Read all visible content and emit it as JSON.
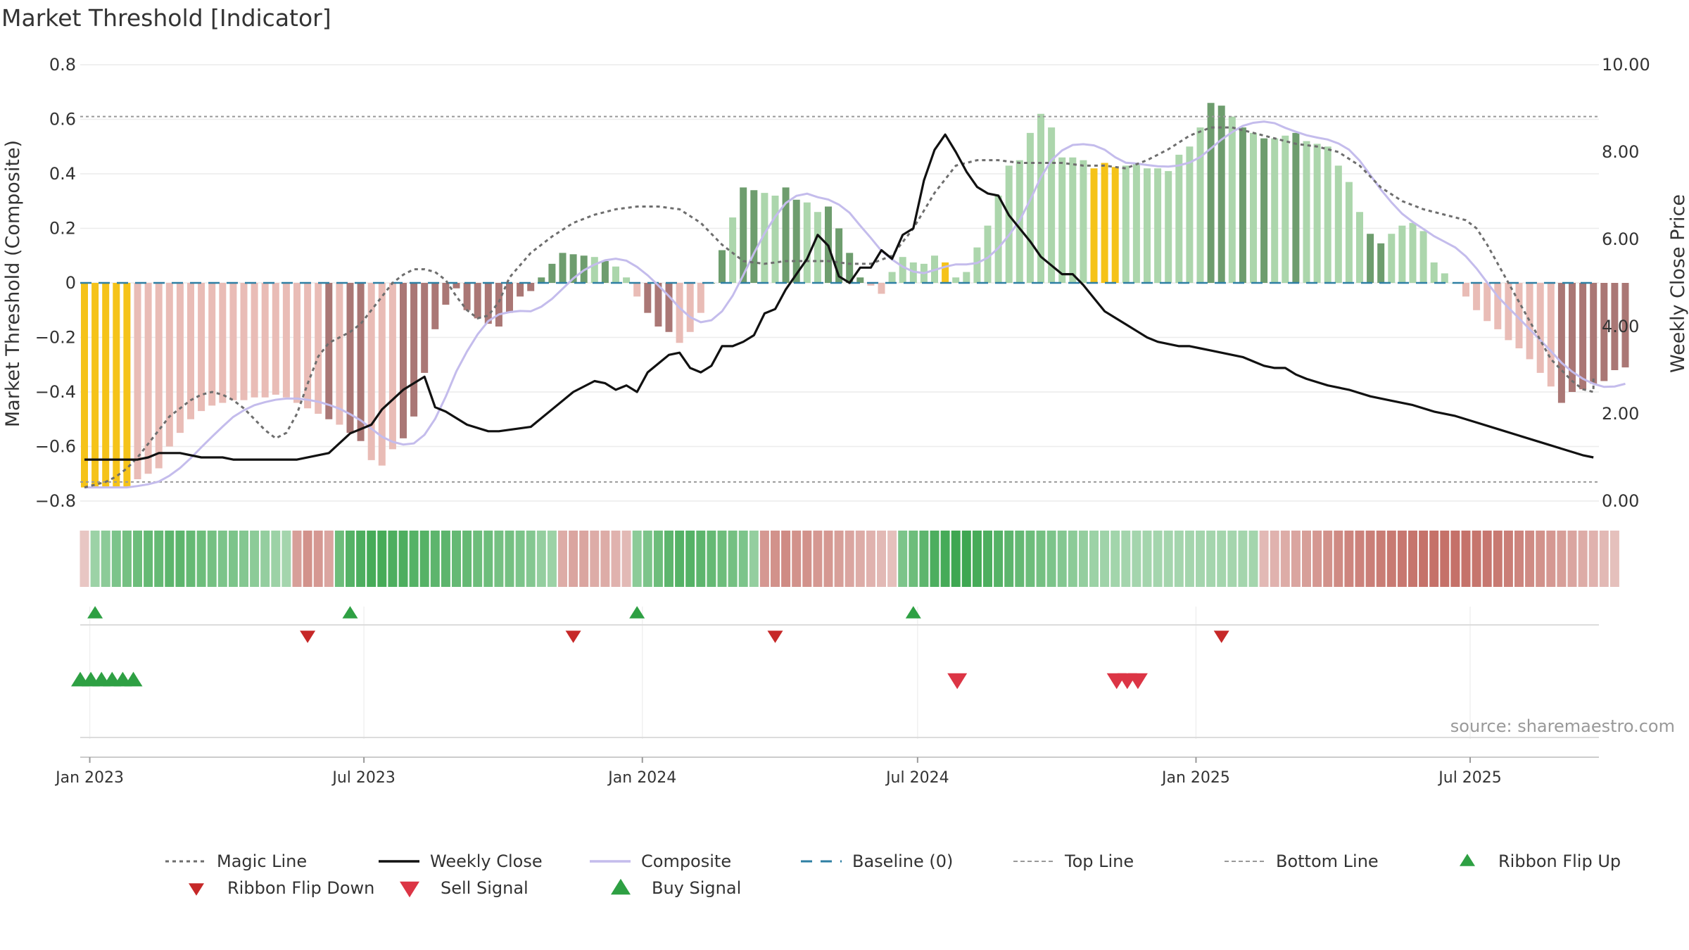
{
  "chart_title": "Market Threshold [Indicator]",
  "source_note": "source: sharemaestro.com",
  "colors": {
    "pos_strong": "#6e9d6e",
    "pos_weak": "#acd6ac",
    "neg_strong": "#aa7775",
    "neg_weak": "#e9bcb6",
    "extreme": "#f5c319",
    "magic": "#6e6e6e",
    "close": "#111111",
    "composite": "#c4bcec",
    "baseline": "#2e7fa3",
    "refline": "#999999",
    "buy": "#2ea043",
    "sell": "#dc3545",
    "flip_down": "#c62828"
  },
  "chart_data": {
    "type": "bar",
    "title": "Market Threshold [Indicator]",
    "ylabel": "Market Threshold (Composite)",
    "y2label": "Weekly Close Price",
    "ylim": [
      -0.8,
      0.8
    ],
    "y2lim": [
      0,
      10
    ],
    "y_ticks": [
      {
        "v": 0.8,
        "t": "0.8"
      },
      {
        "v": 0.6,
        "t": "0.6"
      },
      {
        "v": 0.4,
        "t": "0.4"
      },
      {
        "v": 0.2,
        "t": "0.2"
      },
      {
        "v": 0,
        "t": "0"
      },
      {
        "v": -0.2,
        "t": "−0.2"
      },
      {
        "v": -0.4,
        "t": "−0.4"
      },
      {
        "v": -0.6,
        "t": "−0.6"
      },
      {
        "v": -0.8,
        "t": "−0.8"
      }
    ],
    "y2_ticks": [
      {
        "v": 10,
        "t": "10.00"
      },
      {
        "v": 8,
        "t": "8.00"
      },
      {
        "v": 6,
        "t": "6.00"
      },
      {
        "v": 4,
        "t": "4.00"
      },
      {
        "v": 2,
        "t": "2.00"
      },
      {
        "v": 0,
        "t": "0.00"
      }
    ],
    "x_ticks": [
      {
        "w": 0.5,
        "t": "Jan 2023"
      },
      {
        "w": 26.3,
        "t": "Jul 2023"
      },
      {
        "w": 52.5,
        "t": "Jan 2024"
      },
      {
        "w": 78.4,
        "t": "Jul 2024"
      },
      {
        "w": 104.6,
        "t": "Jan 2025"
      },
      {
        "w": 130.4,
        "t": "Jul 2025"
      }
    ],
    "weeks": 143,
    "composite_bars": [
      -0.75,
      -0.75,
      -0.75,
      -0.75,
      -0.75,
      -0.72,
      -0.7,
      -0.68,
      -0.6,
      -0.55,
      -0.5,
      -0.47,
      -0.45,
      -0.44,
      -0.43,
      -0.43,
      -0.42,
      -0.42,
      -0.41,
      -0.42,
      -0.44,
      -0.46,
      -0.48,
      -0.5,
      -0.52,
      -0.55,
      -0.58,
      -0.65,
      -0.67,
      -0.61,
      -0.57,
      -0.49,
      -0.33,
      -0.17,
      -0.08,
      -0.02,
      -0.1,
      -0.13,
      -0.15,
      -0.16,
      -0.11,
      -0.05,
      -0.03,
      0.02,
      0.07,
      0.11,
      0.105,
      0.1,
      0.095,
      0.08,
      0.06,
      0.02,
      -0.05,
      -0.11,
      -0.16,
      -0.18,
      -0.22,
      -0.18,
      -0.11,
      0.0,
      0.12,
      0.24,
      0.35,
      0.34,
      0.33,
      0.32,
      0.35,
      0.305,
      0.295,
      0.26,
      0.28,
      0.2,
      0.11,
      0.02,
      -0.01,
      -0.04,
      0.04,
      0.095,
      0.075,
      0.07,
      0.1,
      0.075,
      0.02,
      0.04,
      0.13,
      0.21,
      0.32,
      0.43,
      0.45,
      0.55,
      0.62,
      0.57,
      0.46,
      0.46,
      0.45,
      0.42,
      0.44,
      0.425,
      0.43,
      0.44,
      0.42,
      0.42,
      0.41,
      0.47,
      0.5,
      0.57,
      0.66,
      0.65,
      0.61,
      0.57,
      0.55,
      0.53,
      0.53,
      0.54,
      0.55,
      0.52,
      0.51,
      0.5,
      0.43,
      0.37,
      0.26,
      0.18,
      0.145,
      0.18,
      0.21,
      0.22,
      0.19,
      0.075,
      0.035,
      0.0,
      -0.05,
      -0.1,
      -0.14,
      -0.17,
      -0.21,
      -0.24,
      -0.28,
      -0.33,
      -0.38,
      -0.44,
      -0.4,
      -0.39,
      -0.37,
      -0.36,
      -0.32,
      -0.31
    ],
    "bar_intensity": "sssswwwwwwwwwwwwwwwwwwwswsswwwsssssssssssssssssswswwwssswwwsswsswwsswwsssswwwwwwwwwwwwwwwwwwwwwwwwwwwwwwwwsswswswwswwwwwwsswwwwwwwwwwwwwwwwssssssssswwwwwwww",
    "extreme_weeks": [
      0,
      1,
      2,
      3,
      4,
      81,
      95,
      96,
      97
    ],
    "ribbon": [
      -0.1,
      0.3,
      0.4,
      0.5,
      0.55,
      0.6,
      0.65,
      0.65,
      0.7,
      0.7,
      0.65,
      0.6,
      0.55,
      0.5,
      0.5,
      0.45,
      0.4,
      0.35,
      0.3,
      0.25,
      -0.4,
      -0.5,
      -0.45,
      -0.35,
      0.6,
      0.75,
      0.8,
      0.85,
      0.85,
      0.8,
      0.8,
      0.75,
      0.75,
      0.7,
      0.7,
      0.65,
      0.65,
      0.6,
      0.6,
      0.55,
      0.55,
      0.5,
      0.45,
      0.35,
      0.3,
      -0.3,
      -0.35,
      -0.35,
      -0.3,
      -0.3,
      -0.25,
      -0.2,
      0.4,
      0.5,
      0.6,
      0.7,
      0.75,
      0.75,
      0.7,
      0.65,
      0.6,
      0.55,
      0.5,
      0.35,
      -0.45,
      -0.5,
      -0.55,
      -0.5,
      -0.5,
      -0.45,
      -0.45,
      -0.4,
      -0.35,
      -0.3,
      -0.25,
      -0.2,
      -0.15,
      0.5,
      0.6,
      0.7,
      0.8,
      0.85,
      0.9,
      0.9,
      0.85,
      0.8,
      0.75,
      0.7,
      0.65,
      0.6,
      0.55,
      0.5,
      0.45,
      0.4,
      0.35,
      0.3,
      0.28,
      0.26,
      0.25,
      0.25,
      0.25,
      0.25,
      0.25,
      0.25,
      0.25,
      0.25,
      0.25,
      0.25,
      0.25,
      0.25,
      0.25,
      -0.2,
      -0.25,
      -0.3,
      -0.35,
      -0.4,
      -0.45,
      -0.5,
      -0.55,
      -0.6,
      -0.62,
      -0.64,
      -0.66,
      -0.68,
      -0.7,
      -0.72,
      -0.74,
      -0.75,
      -0.75,
      -0.75,
      -0.74,
      -0.72,
      -0.7,
      -0.68,
      -0.65,
      -0.6,
      -0.55,
      -0.5,
      -0.45,
      -0.4,
      -0.35,
      -0.3,
      -0.25,
      -0.2,
      -0.15
    ],
    "weekly_close": [
      [
        0,
        0.95
      ],
      [
        3,
        0.95
      ],
      [
        5,
        0.95
      ],
      [
        6,
        1.0
      ],
      [
        7,
        1.1
      ],
      [
        9,
        1.1
      ],
      [
        11,
        1.0
      ],
      [
        13,
        1.0
      ],
      [
        14,
        0.95
      ],
      [
        20,
        0.95
      ],
      [
        23,
        1.1
      ],
      [
        25,
        1.55
      ],
      [
        27,
        1.75
      ],
      [
        28,
        2.1
      ],
      [
        30,
        2.55
      ],
      [
        32,
        2.85
      ],
      [
        33,
        2.15
      ],
      [
        34,
        2.05
      ],
      [
        36,
        1.75
      ],
      [
        38,
        1.6
      ],
      [
        39,
        1.6
      ],
      [
        42,
        1.7
      ],
      [
        44,
        2.1
      ],
      [
        46,
        2.5
      ],
      [
        48,
        2.75
      ],
      [
        49,
        2.7
      ],
      [
        50,
        2.55
      ],
      [
        51,
        2.65
      ],
      [
        52,
        2.5
      ],
      [
        53,
        2.95
      ],
      [
        55,
        3.35
      ],
      [
        56,
        3.4
      ],
      [
        57,
        3.05
      ],
      [
        58,
        2.95
      ],
      [
        59,
        3.1
      ],
      [
        60,
        3.55
      ],
      [
        61,
        3.55
      ],
      [
        62,
        3.65
      ],
      [
        63,
        3.8
      ],
      [
        64,
        4.3
      ],
      [
        65,
        4.4
      ],
      [
        66,
        4.85
      ],
      [
        67,
        5.2
      ],
      [
        68,
        5.55
      ],
      [
        69,
        6.1
      ],
      [
        70,
        5.85
      ],
      [
        71,
        5.15
      ],
      [
        72,
        5.0
      ],
      [
        73,
        5.35
      ],
      [
        74,
        5.35
      ],
      [
        75,
        5.75
      ],
      [
        76,
        5.55
      ],
      [
        77,
        6.1
      ],
      [
        78,
        6.25
      ],
      [
        79,
        7.35
      ],
      [
        80,
        8.05
      ],
      [
        81,
        8.4
      ],
      [
        82,
        8.0
      ],
      [
        83,
        7.55
      ],
      [
        84,
        7.2
      ],
      [
        85,
        7.05
      ],
      [
        86,
        7.0
      ],
      [
        87,
        6.55
      ],
      [
        88,
        6.25
      ],
      [
        89,
        5.95
      ],
      [
        90,
        5.6
      ],
      [
        91,
        5.4
      ],
      [
        92,
        5.2
      ],
      [
        93,
        5.2
      ],
      [
        94,
        4.95
      ],
      [
        95,
        4.65
      ],
      [
        96,
        4.35
      ],
      [
        97,
        4.2
      ],
      [
        98,
        4.05
      ],
      [
        99,
        3.9
      ],
      [
        100,
        3.75
      ],
      [
        101,
        3.65
      ],
      [
        102,
        3.6
      ],
      [
        103,
        3.55
      ],
      [
        104,
        3.55
      ],
      [
        105,
        3.5
      ],
      [
        106,
        3.45
      ],
      [
        107,
        3.4
      ],
      [
        108,
        3.35
      ],
      [
        109,
        3.3
      ],
      [
        110,
        3.2
      ],
      [
        111,
        3.1
      ],
      [
        112,
        3.05
      ],
      [
        113,
        3.05
      ],
      [
        114,
        2.9
      ],
      [
        115,
        2.8
      ],
      [
        117,
        2.65
      ],
      [
        119,
        2.55
      ],
      [
        121,
        2.4
      ],
      [
        123,
        2.3
      ],
      [
        125,
        2.2
      ],
      [
        127,
        2.05
      ],
      [
        129,
        1.95
      ],
      [
        131,
        1.8
      ],
      [
        133,
        1.65
      ],
      [
        135,
        1.5
      ],
      [
        137,
        1.35
      ],
      [
        139,
        1.2
      ],
      [
        141,
        1.05
      ],
      [
        142,
        1.0
      ]
    ],
    "magic_line": [
      -0.75,
      -0.74,
      -0.73,
      -0.71,
      -0.68,
      -0.64,
      -0.59,
      -0.54,
      -0.49,
      -0.46,
      -0.43,
      -0.41,
      -0.4,
      -0.41,
      -0.43,
      -0.46,
      -0.5,
      -0.54,
      -0.57,
      -0.55,
      -0.48,
      -0.37,
      -0.27,
      -0.22,
      -0.2,
      -0.18,
      -0.15,
      -0.1,
      -0.05,
      0.0,
      0.03,
      0.05,
      0.05,
      0.04,
      0.01,
      -0.05,
      -0.1,
      -0.13,
      -0.12,
      -0.07,
      0.02,
      0.11,
      0.17,
      0.22,
      0.25,
      0.27,
      0.28,
      0.28,
      0.27,
      0.22,
      0.14,
      0.08,
      0.07,
      0.08,
      0.08,
      0.08,
      0.07,
      0.07,
      0.1,
      0.2,
      0.33,
      0.43,
      0.45,
      0.45,
      0.44,
      0.44,
      0.44,
      0.43,
      0.43,
      0.42,
      0.45,
      0.49,
      0.54,
      0.57,
      0.57,
      0.55,
      0.53,
      0.51,
      0.5,
      0.48,
      0.43,
      0.35,
      0.3,
      0.27,
      0.25,
      0.23,
      0.2,
      0.14,
      0.07,
      0.0,
      -0.07,
      -0.14,
      -0.21,
      -0.28,
      -0.32,
      -0.36,
      -0.39,
      -0.4,
      -0.4,
      -0.39,
      -0.38,
      -0.37,
      -0.36,
      -0.35,
      -0.34
    ],
    "magic_line_x": [
      0,
      1,
      2,
      3,
      4,
      5,
      6,
      7,
      8,
      9,
      10,
      11,
      12,
      13,
      14,
      15,
      16,
      17,
      18,
      19,
      20,
      21,
      22,
      23,
      24,
      25,
      26,
      27,
      28,
      29,
      30,
      31,
      32,
      33,
      34,
      35,
      36,
      37,
      38,
      39,
      40,
      42,
      44,
      46,
      48,
      50,
      52,
      54,
      56,
      58,
      60,
      62,
      64,
      66,
      68,
      70,
      72,
      74,
      76,
      78,
      80,
      82,
      84,
      86,
      88,
      90,
      92,
      94,
      96,
      98,
      100,
      102,
      104,
      106,
      108,
      110,
      112,
      114,
      116,
      118,
      120,
      122,
      124,
      126,
      128,
      130,
      131,
      132,
      133,
      134,
      135,
      136,
      137,
      138,
      139,
      140,
      141,
      142,
      142.5,
      142.8,
      142.9,
      142.95,
      142.97,
      142.98,
      142.99
    ],
    "top_line": 0.61,
    "bottom_line": -0.73,
    "ribbon_flip_up_weeks": [
      1,
      25,
      52,
      78
    ],
    "ribbon_flip_down_weeks": [
      21,
      46,
      65,
      107
    ],
    "buy_signal_weeks": [
      0,
      1,
      2,
      3,
      4,
      5
    ],
    "sell_signal_weeks": [
      82,
      97,
      98,
      99
    ],
    "legend": [
      {
        "label": "Magic Line",
        "kind": "dotted",
        "color": "magic"
      },
      {
        "label": "Weekly Close",
        "kind": "solid",
        "color": "close"
      },
      {
        "label": "Composite",
        "kind": "solid",
        "color": "composite"
      },
      {
        "label": "Baseline (0)",
        "kind": "dashed",
        "color": "baseline"
      },
      {
        "label": "Top Line",
        "kind": "fine_dash",
        "color": "refline"
      },
      {
        "label": "Bottom Line",
        "kind": "fine_dash",
        "color": "refline"
      },
      {
        "label": "Ribbon Flip Up",
        "kind": "tri_up",
        "color": "buy"
      },
      {
        "label": "Ribbon Flip Down",
        "kind": "tri_down",
        "color": "flip_down"
      },
      {
        "label": "Sell Signal",
        "kind": "tri_down_big",
        "color": "sell"
      },
      {
        "label": "Buy Signal",
        "kind": "tri_up_big",
        "color": "buy"
      }
    ]
  }
}
